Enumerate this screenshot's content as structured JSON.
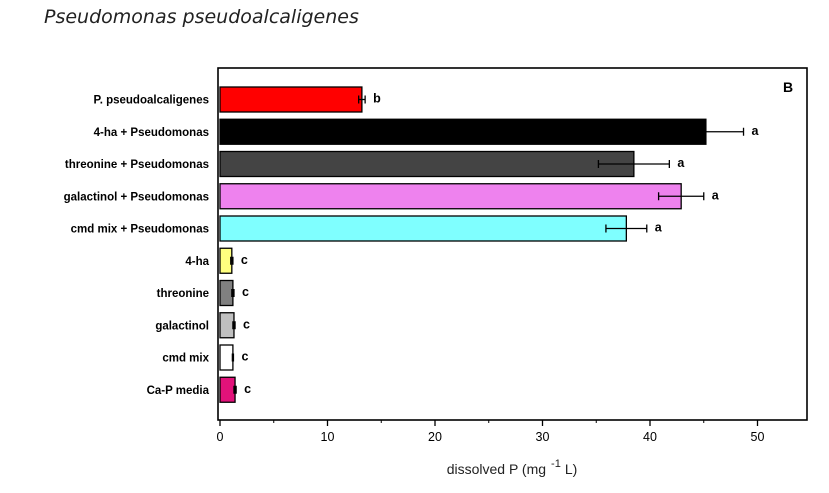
{
  "slide": {
    "title": "Pseudomonas pseudoalcaligenes"
  },
  "chart_data": {
    "type": "bar",
    "orientation": "horizontal",
    "panel_label": "B",
    "categories": [
      "P. pseudoalcaligenes",
      "4-ha + Pseudomonas",
      "threonine + Pseudomonas",
      "galactinol + Pseudomonas",
      "cmd mix + Pseudomonas",
      "4-ha",
      "threonine",
      "galactinol",
      "cmd mix",
      "Ca-P media"
    ],
    "values": [
      13.2,
      45.2,
      38.5,
      42.9,
      37.8,
      1.1,
      1.2,
      1.3,
      1.2,
      1.4
    ],
    "errors": [
      0.3,
      3.5,
      3.3,
      2.1,
      1.9,
      0.1,
      0.1,
      0.1,
      0.05,
      0.1
    ],
    "significance": [
      "b",
      "a",
      "a",
      "a",
      "a",
      "c",
      "c",
      "c",
      "c",
      "c"
    ],
    "colors": [
      "#ff0000",
      "#000000",
      "#444444",
      "#ee82ee",
      "#7fffff",
      "#ffff7f",
      "#808080",
      "#c0c0c0",
      "#ffffff",
      "#e2127a"
    ],
    "xlabel": {
      "prefix": "dissolved P (mg",
      "superscript": "-1",
      "suffix": "L)"
    },
    "xlim": [
      0,
      55
    ],
    "xticks": [
      0,
      10,
      20,
      30,
      40,
      50
    ],
    "grid": false
  }
}
